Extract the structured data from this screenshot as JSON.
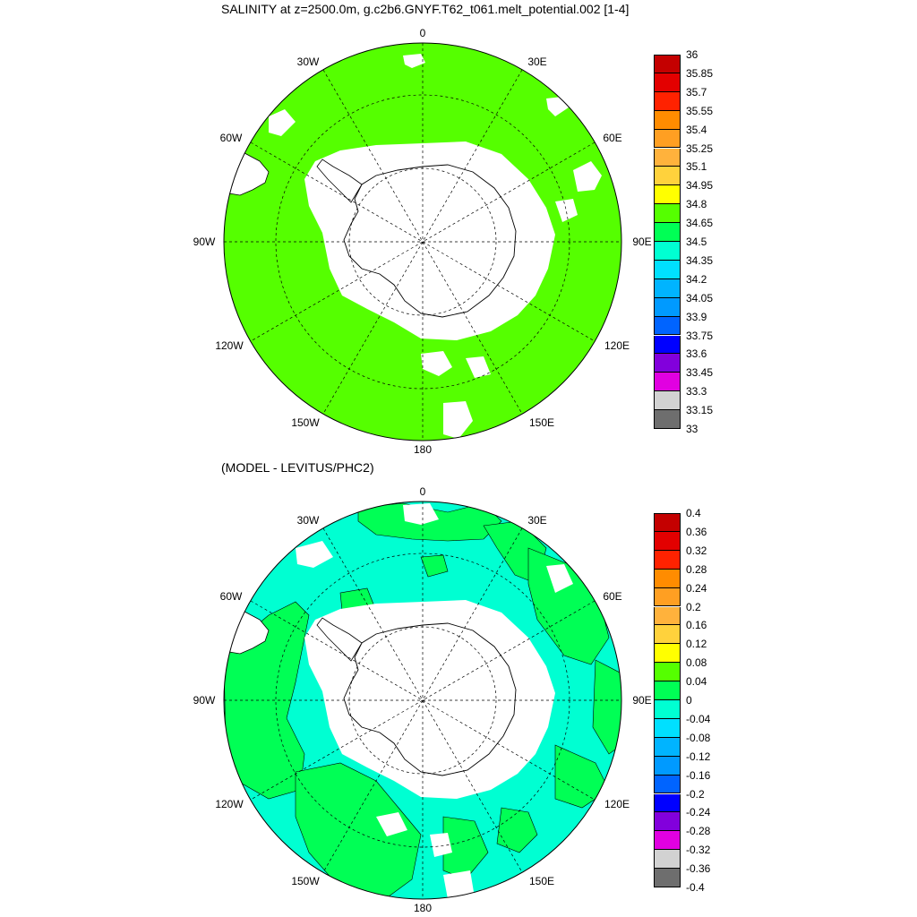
{
  "top_panel": {
    "title": "SALINITY at z=2500.0m, g.c2b6.GNYF.T62_t061.melt_potential.002 [1-4]",
    "lon_labels": [
      "0",
      "30E",
      "60E",
      "90E",
      "120E",
      "150E",
      "180",
      "150W",
      "120W",
      "90W",
      "60W",
      "30W"
    ],
    "ocean_fill": "#55ff00",
    "colorbar": {
      "ticks": [
        "36",
        "35.85",
        "35.7",
        "35.55",
        "35.4",
        "35.25",
        "35.1",
        "34.95",
        "34.8",
        "34.65",
        "34.5",
        "34.35",
        "34.2",
        "34.05",
        "33.9",
        "33.75",
        "33.6",
        "33.45",
        "33.3",
        "33.15",
        "33"
      ],
      "colors": [
        "#c40000",
        "#e30000",
        "#ff2200",
        "#ff8c00",
        "#ff9f22",
        "#ffb23c",
        "#ffd23c",
        "#ffff00",
        "#55ff00",
        "#00ff55",
        "#00ffd2",
        "#00e0ff",
        "#00b4ff",
        "#009aff",
        "#0064ff",
        "#0000ff",
        "#8200dc",
        "#e100e1",
        "#d2d2d2",
        "#6e6e6e"
      ]
    }
  },
  "bottom_panel": {
    "title": "(MODEL - LEVITUS/PHC2)",
    "lon_labels": [
      "0",
      "30E",
      "60E",
      "90E",
      "120E",
      "150E",
      "180",
      "150W",
      "120W",
      "90W",
      "60W",
      "30W"
    ],
    "ocean_fill": "#00ffd2",
    "anomaly_fill": "#00ff55",
    "colorbar": {
      "ticks": [
        "0.4",
        "0.36",
        "0.32",
        "0.28",
        "0.24",
        "0.2",
        "0.16",
        "0.12",
        "0.08",
        "0.04",
        "0",
        "-0.04",
        "-0.08",
        "-0.12",
        "-0.16",
        "-0.2",
        "-0.24",
        "-0.28",
        "-0.32",
        "-0.36",
        "-0.4"
      ],
      "colors": [
        "#c40000",
        "#e30000",
        "#ff2200",
        "#ff8c00",
        "#ff9f22",
        "#ffb23c",
        "#ffd23c",
        "#ffff00",
        "#55ff00",
        "#00ff55",
        "#00ffd2",
        "#00e0ff",
        "#00b4ff",
        "#009aff",
        "#0064ff",
        "#0000ff",
        "#8200dc",
        "#e100e1",
        "#d2d2d2",
        "#6e6e6e"
      ]
    }
  }
}
